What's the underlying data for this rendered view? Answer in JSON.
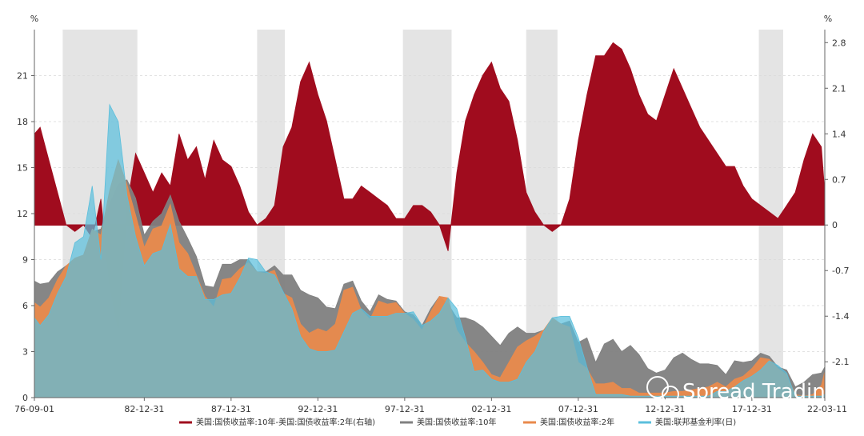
{
  "chart_data": {
    "type": "area",
    "title": "",
    "left_axis": {
      "unit": "%",
      "ticks": [
        0,
        3,
        6,
        9,
        12,
        15,
        18,
        21
      ],
      "range": [
        0,
        24
      ]
    },
    "right_axis": {
      "unit": "%",
      "ticks": [
        -2.1,
        -1.4,
        -0.7,
        0,
        0.7,
        1.4,
        2.1,
        2.8
      ],
      "tick_labels": [
        "-2.1",
        "-1.4",
        "-0.7",
        "0",
        "0.7",
        "1.4",
        "2.1",
        "2.8"
      ],
      "range": [
        -2.65,
        3.0
      ]
    },
    "x_axis": {
      "range": [
        1976.67,
        2022.2
      ],
      "ticks": [
        {
          "t": 1976.67,
          "label": "76-09-01"
        },
        {
          "t": 1983.0,
          "label": "82-12-31"
        },
        {
          "t": 1988.0,
          "label": "87-12-31"
        },
        {
          "t": 1993.0,
          "label": "92-12-31"
        },
        {
          "t": 1998.0,
          "label": "97-12-31"
        },
        {
          "t": 2003.0,
          "label": "02-12-31"
        },
        {
          "t": 2008.0,
          "label": "07-12-31"
        },
        {
          "t": 2013.0,
          "label": "12-12-31"
        },
        {
          "t": 2018.0,
          "label": "17-12-31"
        },
        {
          "t": 2022.2,
          "label": "22-03-11"
        }
      ]
    },
    "shaded_periods": [
      [
        1978.3,
        1982.6
      ],
      [
        1989.5,
        1991.1
      ],
      [
        1997.9,
        2000.7
      ],
      [
        2005.0,
        2006.8
      ],
      [
        2018.4,
        2019.8
      ]
    ],
    "series": [
      {
        "name": "美国:国债收益率:10年-美国:国债收益率:2年(右轴)",
        "axis": "right",
        "color": "#a00c1e",
        "x": [
          1976.67,
          1977.0,
          1977.5,
          1978.0,
          1978.5,
          1979.0,
          1979.5,
          1980.0,
          1980.5,
          1981.0,
          1981.5,
          1982.0,
          1982.5,
          1983.0,
          1983.5,
          1984.0,
          1984.5,
          1985.0,
          1985.5,
          1986.0,
          1986.5,
          1987.0,
          1987.5,
          1988.0,
          1988.5,
          1989.0,
          1989.5,
          1990.0,
          1990.5,
          1991.0,
          1991.5,
          1992.0,
          1992.5,
          1993.0,
          1993.5,
          1994.0,
          1994.5,
          1995.0,
          1995.5,
          1996.0,
          1996.5,
          1997.0,
          1997.5,
          1998.0,
          1998.5,
          1999.0,
          1999.5,
          2000.0,
          2000.5,
          2001.0,
          2001.5,
          2002.0,
          2002.5,
          2003.0,
          2003.5,
          2004.0,
          2004.5,
          2005.0,
          2005.5,
          2006.0,
          2006.5,
          2007.0,
          2007.5,
          2008.0,
          2008.5,
          2009.0,
          2009.5,
          2010.0,
          2010.5,
          2011.0,
          2011.5,
          2012.0,
          2012.5,
          2013.0,
          2013.5,
          2014.0,
          2014.5,
          2015.0,
          2015.5,
          2016.0,
          2016.5,
          2017.0,
          2017.5,
          2018.0,
          2018.5,
          2019.0,
          2019.5,
          2020.0,
          2020.5,
          2021.0,
          2021.5,
          2022.0,
          2022.2
        ],
        "values": [
          1.4,
          1.5,
          1.0,
          0.5,
          0.0,
          -0.1,
          0.0,
          -0.2,
          0.4,
          -0.9,
          -1.6,
          0.3,
          1.1,
          0.8,
          0.5,
          0.8,
          0.6,
          1.4,
          1.0,
          1.2,
          0.7,
          1.3,
          1.0,
          0.9,
          0.6,
          0.2,
          0.0,
          0.1,
          0.3,
          1.2,
          1.5,
          2.2,
          2.5,
          2.0,
          1.6,
          1.0,
          0.4,
          0.4,
          0.6,
          0.5,
          0.4,
          0.3,
          0.1,
          0.1,
          0.3,
          0.3,
          0.2,
          0.0,
          -0.4,
          0.8,
          1.6,
          2.0,
          2.3,
          2.5,
          2.1,
          1.9,
          1.3,
          0.5,
          0.2,
          0.0,
          -0.1,
          0.0,
          0.4,
          1.3,
          2.0,
          2.6,
          2.6,
          2.8,
          2.7,
          2.4,
          2.0,
          1.7,
          1.6,
          2.0,
          2.4,
          2.1,
          1.8,
          1.5,
          1.3,
          1.1,
          0.9,
          0.9,
          0.6,
          0.4,
          0.3,
          0.2,
          0.1,
          0.3,
          0.5,
          1.0,
          1.4,
          1.2,
          0.5
        ]
      },
      {
        "name": "美国:国债收益率:10年",
        "axis": "left",
        "color": "#808080",
        "x": [
          1976.67,
          1977.0,
          1977.5,
          1978.0,
          1978.5,
          1979.0,
          1979.5,
          1980.0,
          1980.5,
          1981.0,
          1981.5,
          1982.0,
          1982.5,
          1983.0,
          1983.5,
          1984.0,
          1984.5,
          1985.0,
          1985.5,
          1986.0,
          1986.5,
          1987.0,
          1987.5,
          1988.0,
          1988.5,
          1989.0,
          1989.5,
          1990.0,
          1990.5,
          1991.0,
          1991.5,
          1992.0,
          1992.5,
          1993.0,
          1993.5,
          1994.0,
          1994.5,
          1995.0,
          1995.5,
          1996.0,
          1996.5,
          1997.0,
          1997.5,
          1998.0,
          1998.5,
          1999.0,
          1999.5,
          2000.0,
          2000.5,
          2001.0,
          2001.5,
          2002.0,
          2002.5,
          2003.0,
          2003.5,
          2004.0,
          2004.5,
          2005.0,
          2005.5,
          2006.0,
          2006.5,
          2007.0,
          2007.5,
          2008.0,
          2008.5,
          2009.0,
          2009.5,
          2010.0,
          2010.5,
          2011.0,
          2011.5,
          2012.0,
          2012.5,
          2013.0,
          2013.5,
          2014.0,
          2014.5,
          2015.0,
          2015.5,
          2016.0,
          2016.5,
          2017.0,
          2017.5,
          2018.0,
          2018.5,
          2019.0,
          2019.5,
          2020.0,
          2020.5,
          2021.0,
          2021.5,
          2022.0,
          2022.2
        ],
        "values": [
          7.6,
          7.4,
          7.5,
          8.2,
          8.6,
          9.0,
          9.3,
          10.8,
          11.0,
          12.6,
          13.9,
          14.2,
          13.0,
          10.6,
          11.5,
          12.0,
          13.2,
          11.5,
          10.4,
          9.2,
          7.3,
          7.2,
          8.7,
          8.7,
          9.0,
          9.0,
          8.2,
          8.2,
          8.6,
          8.0,
          8.0,
          7.0,
          6.7,
          6.5,
          5.9,
          5.8,
          7.4,
          7.6,
          6.3,
          5.6,
          6.7,
          6.4,
          6.3,
          5.6,
          5.4,
          4.7,
          5.8,
          6.6,
          6.1,
          5.2,
          5.2,
          5.0,
          4.6,
          4.0,
          3.4,
          4.2,
          4.6,
          4.2,
          4.2,
          4.4,
          5.1,
          4.8,
          5.0,
          3.6,
          3.9,
          2.3,
          3.5,
          3.8,
          3.0,
          3.4,
          2.8,
          1.9,
          1.6,
          1.8,
          2.6,
          2.9,
          2.5,
          2.2,
          2.2,
          2.1,
          1.5,
          2.4,
          2.3,
          2.4,
          2.9,
          2.7,
          2.0,
          1.8,
          0.7,
          1.0,
          1.5,
          1.6,
          2.0
        ]
      },
      {
        "name": "美国:国债收益率:2年",
        "axis": "left",
        "color": "#e98a4c",
        "x": [
          1976.67,
          1977.0,
          1977.5,
          1978.0,
          1978.5,
          1979.0,
          1979.5,
          1980.0,
          1980.5,
          1981.0,
          1981.5,
          1982.0,
          1982.5,
          1983.0,
          1983.5,
          1984.0,
          1984.5,
          1985.0,
          1985.5,
          1986.0,
          1986.5,
          1987.0,
          1987.5,
          1988.0,
          1988.5,
          1989.0,
          1989.5,
          1990.0,
          1990.5,
          1991.0,
          1991.5,
          1992.0,
          1992.5,
          1993.0,
          1993.5,
          1994.0,
          1994.5,
          1995.0,
          1995.5,
          1996.0,
          1996.5,
          1997.0,
          1997.5,
          1998.0,
          1998.5,
          1999.0,
          1999.5,
          2000.0,
          2000.5,
          2001.0,
          2001.5,
          2002.0,
          2002.5,
          2003.0,
          2003.5,
          2004.0,
          2004.5,
          2005.0,
          2005.5,
          2006.0,
          2006.5,
          2007.0,
          2007.5,
          2008.0,
          2008.5,
          2009.0,
          2009.5,
          2010.0,
          2010.5,
          2011.0,
          2011.5,
          2012.0,
          2012.5,
          2013.0,
          2013.5,
          2014.0,
          2014.5,
          2015.0,
          2015.5,
          2016.0,
          2016.5,
          2017.0,
          2017.5,
          2018.0,
          2018.5,
          2019.0,
          2019.5,
          2020.0,
          2020.5,
          2021.0,
          2021.5,
          2022.0,
          2022.2
        ],
        "values": [
          6.2,
          5.9,
          6.5,
          7.7,
          8.6,
          9.1,
          9.3,
          11.0,
          10.6,
          13.5,
          15.5,
          13.9,
          11.9,
          9.8,
          11.0,
          11.2,
          12.6,
          10.1,
          9.4,
          8.0,
          6.6,
          5.9,
          7.7,
          7.8,
          8.4,
          8.8,
          8.2,
          8.1,
          8.3,
          6.8,
          6.5,
          4.8,
          4.2,
          4.5,
          4.3,
          4.8,
          7.0,
          7.2,
          5.7,
          5.1,
          6.3,
          6.1,
          6.2,
          5.5,
          5.1,
          4.4,
          5.6,
          6.6,
          6.5,
          4.4,
          3.6,
          3.0,
          2.3,
          1.5,
          1.3,
          2.3,
          3.3,
          3.7,
          4.0,
          4.4,
          5.2,
          4.8,
          4.6,
          2.3,
          1.9,
          0.9,
          0.9,
          1.0,
          0.6,
          0.6,
          0.3,
          0.3,
          0.3,
          0.3,
          0.4,
          0.4,
          0.5,
          0.6,
          0.7,
          1.0,
          0.7,
          1.2,
          1.4,
          1.9,
          2.6,
          2.5,
          1.9,
          1.5,
          0.2,
          0.1,
          0.2,
          0.8,
          1.7
        ]
      },
      {
        "name": "美国:联邦基金利率(日)",
        "axis": "left",
        "color": "#5bbfdc",
        "x": [
          1976.67,
          1977.0,
          1977.5,
          1978.0,
          1978.5,
          1979.0,
          1979.5,
          1980.0,
          1980.5,
          1981.0,
          1981.5,
          1982.0,
          1982.5,
          1983.0,
          1983.5,
          1984.0,
          1984.5,
          1985.0,
          1985.5,
          1986.0,
          1986.5,
          1987.0,
          1987.5,
          1988.0,
          1988.5,
          1989.0,
          1989.5,
          1990.0,
          1990.5,
          1991.0,
          1991.5,
          1992.0,
          1992.5,
          1993.0,
          1993.5,
          1994.0,
          1994.5,
          1995.0,
          1995.5,
          1996.0,
          1996.5,
          1997.0,
          1997.5,
          1998.0,
          1998.5,
          1999.0,
          1999.5,
          2000.0,
          2000.5,
          2001.0,
          2001.5,
          2002.0,
          2002.5,
          2003.0,
          2003.5,
          2004.0,
          2004.5,
          2005.0,
          2005.5,
          2006.0,
          2006.5,
          2007.0,
          2007.5,
          2008.0,
          2008.5,
          2009.0,
          2009.5,
          2010.0,
          2010.5,
          2011.0,
          2011.5,
          2012.0,
          2012.5,
          2013.0,
          2013.5,
          2014.0,
          2014.5,
          2015.0,
          2015.5,
          2016.0,
          2016.5,
          2017.0,
          2017.5,
          2018.0,
          2018.5,
          2019.0,
          2019.5,
          2020.0,
          2020.5,
          2021.0,
          2021.5,
          2022.0,
          2022.2
        ],
        "values": [
          5.2,
          4.7,
          5.4,
          6.8,
          7.9,
          10.1,
          10.5,
          13.8,
          9.0,
          19.1,
          18.0,
          13.2,
          10.5,
          8.6,
          9.4,
          9.6,
          11.3,
          8.4,
          7.9,
          7.9,
          6.4,
          6.4,
          6.7,
          6.8,
          7.8,
          9.1,
          9.0,
          8.2,
          8.0,
          6.9,
          5.8,
          4.0,
          3.2,
          3.0,
          3.0,
          3.1,
          4.3,
          5.5,
          5.8,
          5.3,
          5.3,
          5.3,
          5.5,
          5.5,
          5.6,
          4.7,
          5.0,
          5.5,
          6.5,
          5.8,
          3.9,
          1.7,
          1.8,
          1.2,
          1.0,
          1.0,
          1.2,
          2.3,
          3.0,
          4.3,
          5.2,
          5.3,
          5.3,
          3.9,
          2.0,
          0.2,
          0.2,
          0.2,
          0.2,
          0.1,
          0.1,
          0.1,
          0.1,
          0.1,
          0.1,
          0.1,
          0.1,
          0.1,
          0.1,
          0.4,
          0.4,
          0.7,
          1.1,
          1.4,
          1.8,
          2.4,
          2.1,
          1.6,
          0.1,
          0.1,
          0.1,
          0.1,
          0.2
        ]
      }
    ],
    "legend": [
      {
        "label": "美国:国债收益率:10年-美国:国债收益率:2年(右轴)",
        "color": "#a00c1e"
      },
      {
        "label": "美国:国债收益率:10年",
        "color": "#808080"
      },
      {
        "label": "美国:国债收益率:2年",
        "color": "#e98a4c"
      },
      {
        "label": "美国:联邦基金利率(日)",
        "color": "#5bbfdc"
      }
    ],
    "legend_position": "bottom-center",
    "grid": true,
    "watermark": "Spread Trading"
  }
}
